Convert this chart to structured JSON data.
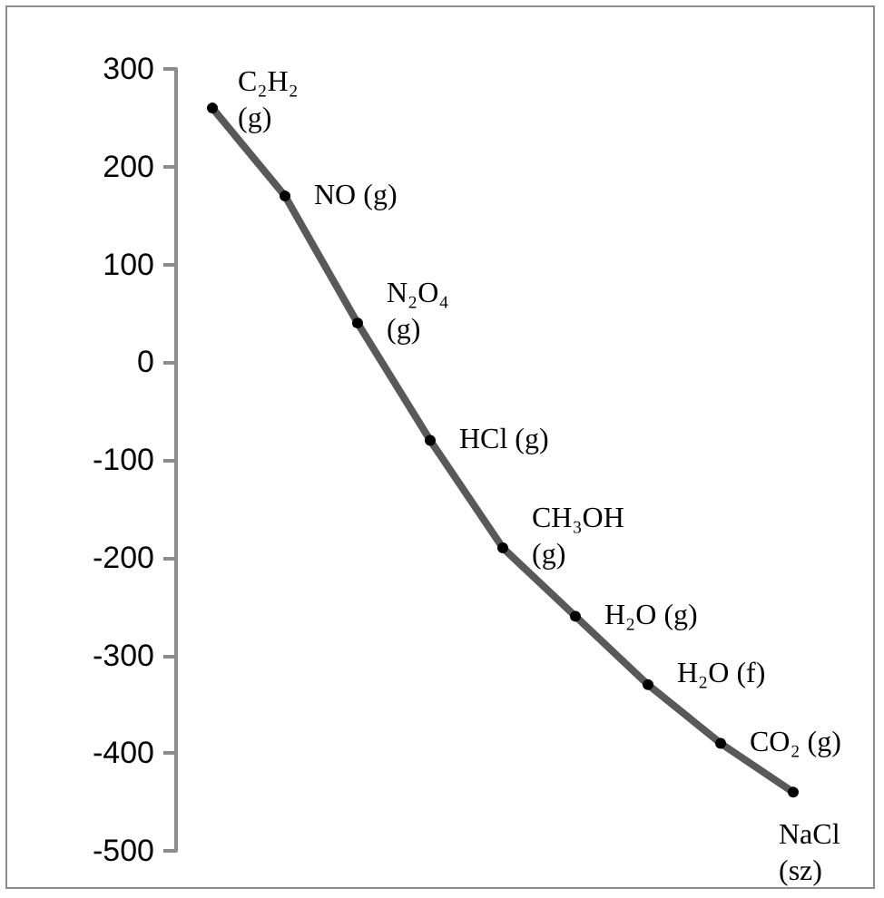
{
  "chart_data": {
    "type": "line",
    "categories": [
      null,
      null,
      null,
      null,
      null,
      null,
      null,
      null,
      null
    ],
    "series": [
      {
        "color": "#595959",
        "values": [
          260,
          170,
          40,
          -80,
          -190,
          -260,
          -330,
          -390,
          -440
        ],
        "value_labels": [
          "C₂H₂\n(g)",
          "NO (g)",
          "N₂O₄\n(g)",
          "HCl (g)",
          "CH₃OH\n(g)",
          "H₂O (g)",
          "H₂O (f)",
          "CO₂ (g)",
          "NaCl\n(sz)"
        ]
      }
    ],
    "ylim": [
      -500,
      300
    ],
    "yticks": [
      -500,
      -400,
      -300,
      -200,
      -100,
      0,
      100,
      200,
      300
    ],
    "grid": false,
    "marker": "circle",
    "line_style": "solid",
    "tick_labels": "y"
  }
}
